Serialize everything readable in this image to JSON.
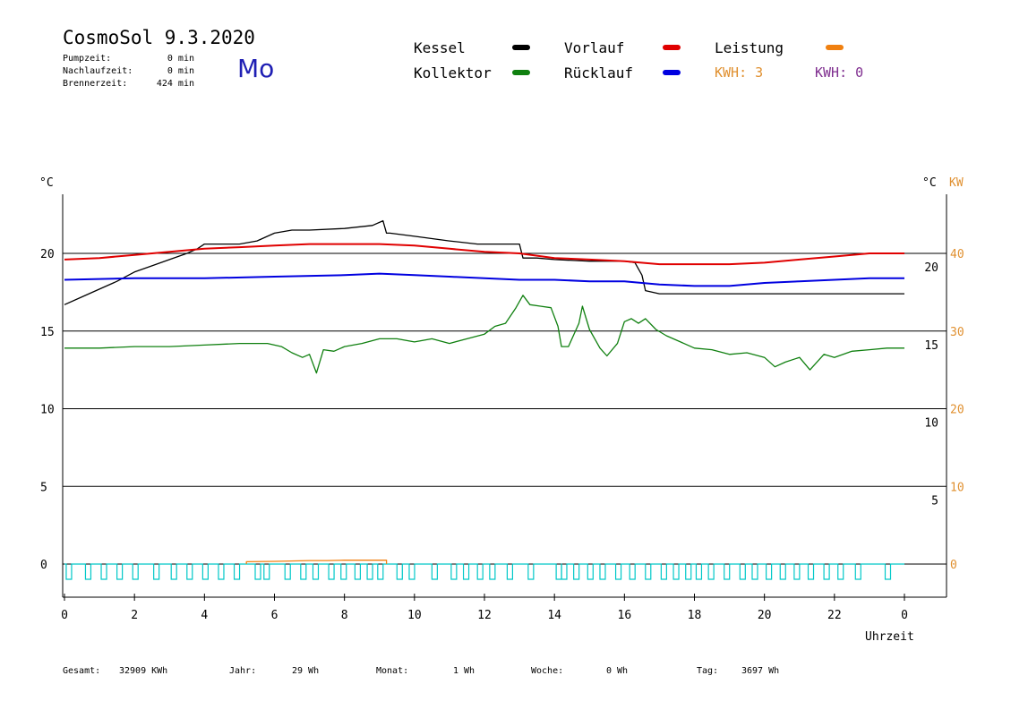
{
  "header": {
    "title": "CosmoSol 9.3.2020",
    "day": "Mo",
    "stats": [
      {
        "label": "Pumpzeit:",
        "value": "0 min"
      },
      {
        "label": "Nachlaufzeit:",
        "value": "0 min"
      },
      {
        "label": "Brennerzeit:",
        "value": "424 min"
      }
    ]
  },
  "legend": {
    "kessel": {
      "label": "Kessel",
      "color": "#000000"
    },
    "vorlauf": {
      "label": "Vorlauf",
      "color": "#e00000"
    },
    "leistung": {
      "label": "Leistung",
      "color": "#f08010"
    },
    "kollektor": {
      "label": "Kollektor",
      "color": "#108010"
    },
    "ruecklauf": {
      "label": "Rücklauf",
      "color": "#0000e0"
    },
    "kwh1": {
      "text": "KWH: 3",
      "color": "#e09030"
    },
    "kwh2": {
      "text": "KWH: 0",
      "color": "#803090"
    }
  },
  "footer": [
    {
      "label": "Gesamt:",
      "value": "32909 KWh"
    },
    {
      "label": "Jahr:",
      "value": "29 Wh"
    },
    {
      "label": "Monat:",
      "value": "1 Wh"
    },
    {
      "label": "Woche:",
      "value": "0 Wh"
    },
    {
      "label": "Tag:",
      "value": "3697 Wh"
    }
  ],
  "chart_data": {
    "type": "line",
    "xlabel": "Uhrzeit",
    "ylabel_left": "°C",
    "ylabel_right": "°C",
    "ylabel_right2": "KW",
    "xlim": [
      0,
      24
    ],
    "ylim": [
      -1.5,
      23.5
    ],
    "x_ticks": [
      "0",
      "2",
      "4",
      "6",
      "8",
      "10",
      "12",
      "14",
      "16",
      "18",
      "20",
      "22",
      "0"
    ],
    "y_ticks_left": [
      "20",
      "15",
      "10",
      "5",
      "0"
    ],
    "y_ticks_right": [
      "20",
      "15",
      "10",
      "5"
    ],
    "y_ticks_right2": [
      "40",
      "30",
      "20",
      "10",
      "0"
    ],
    "grid": "horizontal",
    "series": [
      {
        "name": "Kessel",
        "color": "#000000",
        "x": [
          0,
          0.5,
          1,
          1.5,
          2,
          2.5,
          3,
          3.5,
          3.8,
          4,
          5,
          5.5,
          6,
          6.5,
          7,
          8,
          8.8,
          9.1,
          9.2,
          9.3,
          10,
          11,
          11.8,
          12,
          13,
          13.1,
          13.5,
          14,
          15,
          16,
          16.3,
          16.5,
          16.6,
          17,
          18,
          20,
          22,
          24
        ],
        "y": [
          16.7,
          17.2,
          17.7,
          18.2,
          18.8,
          19.2,
          19.6,
          20,
          20.3,
          20.6,
          20.6,
          20.8,
          21.3,
          21.5,
          21.5,
          21.6,
          21.8,
          22.1,
          21.3,
          21.3,
          21.1,
          20.8,
          20.6,
          20.6,
          20.6,
          19.7,
          19.7,
          19.6,
          19.5,
          19.5,
          19.4,
          18.6,
          17.6,
          17.4,
          17.4,
          17.4,
          17.4,
          17.4
        ]
      },
      {
        "name": "Vorlauf",
        "color": "#e00000",
        "x": [
          0,
          1,
          2,
          3,
          4,
          5,
          6,
          7,
          8,
          9,
          10,
          11,
          12,
          13,
          14,
          15,
          16,
          17,
          18,
          19,
          20,
          21,
          22,
          23,
          24
        ],
        "y": [
          19.6,
          19.7,
          19.9,
          20.1,
          20.3,
          20.4,
          20.5,
          20.6,
          20.6,
          20.6,
          20.5,
          20.3,
          20.1,
          20,
          19.7,
          19.6,
          19.5,
          19.3,
          19.3,
          19.3,
          19.4,
          19.6,
          19.8,
          20,
          20
        ]
      },
      {
        "name": "Rücklauf",
        "color": "#0000e0",
        "x": [
          0,
          2,
          4,
          6,
          8,
          9,
          10,
          11,
          12,
          13,
          14,
          15,
          16,
          17,
          18,
          19,
          20,
          21,
          22,
          23,
          24
        ],
        "y": [
          18.3,
          18.4,
          18.4,
          18.5,
          18.6,
          18.7,
          18.6,
          18.5,
          18.4,
          18.3,
          18.3,
          18.2,
          18.2,
          18.0,
          17.9,
          17.9,
          18.1,
          18.2,
          18.3,
          18.4,
          18.4
        ]
      },
      {
        "name": "Kollektor",
        "color": "#108010",
        "x": [
          0,
          1,
          2,
          3,
          4,
          5,
          5.8,
          6.2,
          6.5,
          6.8,
          7.0,
          7.2,
          7.4,
          7.7,
          8,
          8.5,
          9,
          9.5,
          10,
          10.5,
          11,
          11.5,
          12,
          12.3,
          12.6,
          12.9,
          13.1,
          13.3,
          13.6,
          13.9,
          14.1,
          14.2,
          14.4,
          14.7,
          14.8,
          15,
          15.3,
          15.5,
          15.8,
          16,
          16.2,
          16.4,
          16.6,
          16.9,
          17.2,
          17.6,
          18,
          18.5,
          19,
          19.5,
          20,
          20.3,
          20.6,
          21,
          21.3,
          21.7,
          22,
          22.5,
          23,
          23.5,
          24
        ],
        "y": [
          13.9,
          13.9,
          14.0,
          14.0,
          14.1,
          14.2,
          14.2,
          14.0,
          13.6,
          13.3,
          13.5,
          12.3,
          13.8,
          13.7,
          14.0,
          14.2,
          14.5,
          14.5,
          14.3,
          14.5,
          14.2,
          14.5,
          14.8,
          15.3,
          15.5,
          16.5,
          17.3,
          16.7,
          16.6,
          16.5,
          15.3,
          14.0,
          14.0,
          15.5,
          16.6,
          15.1,
          13.9,
          13.4,
          14.2,
          15.6,
          15.8,
          15.5,
          15.8,
          15.1,
          14.7,
          14.3,
          13.9,
          13.8,
          13.5,
          13.6,
          13.3,
          12.7,
          13.0,
          13.3,
          12.5,
          13.5,
          13.3,
          13.7,
          13.8,
          13.9,
          13.9
        ]
      },
      {
        "name": "Leistung",
        "color": "#f08010",
        "axis": "right2",
        "x": [
          5.2,
          5.2,
          6,
          7,
          7.5,
          8,
          9.2,
          9.2
        ],
        "y": [
          0,
          0.3,
          0.35,
          0.45,
          0.45,
          0.5,
          0.5,
          0
        ]
      }
    ],
    "pump_pulses_x": [
      0.05,
      0.6,
      1.05,
      1.5,
      1.95,
      2.55,
      3.05,
      3.5,
      3.95,
      4.4,
      4.85,
      5.45,
      5.7,
      6.3,
      6.75,
      7.1,
      7.55,
      7.9,
      8.3,
      8.65,
      8.95,
      9.5,
      9.85,
      10.5,
      11.05,
      11.4,
      11.8,
      12.15,
      12.65,
      13.25,
      14.05,
      14.2,
      14.55,
      14.95,
      15.3,
      15.75,
      16.15,
      16.6,
      17.05,
      17.4,
      17.75,
      18.05,
      18.4,
      18.85,
      19.3,
      19.65,
      20.05,
      20.45,
      20.85,
      21.25,
      21.7,
      22.1,
      22.6,
      23.45
    ]
  }
}
